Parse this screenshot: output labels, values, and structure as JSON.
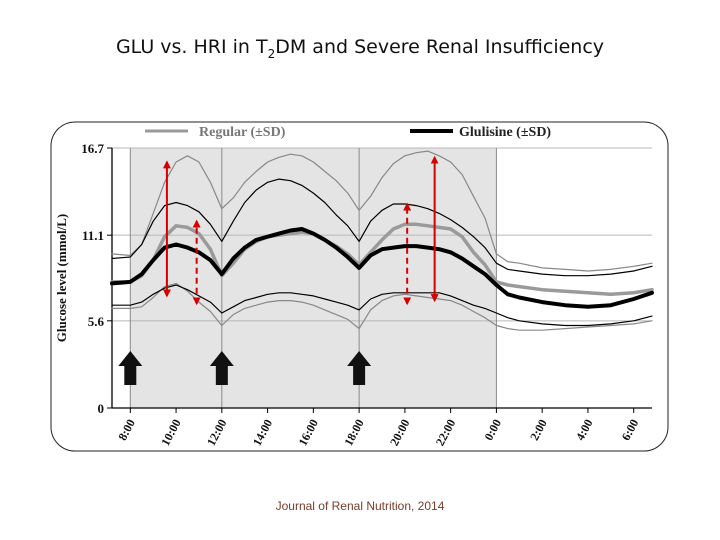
{
  "slide": {
    "title_prefix": "GLU vs. HRI in T",
    "title_sub": "2",
    "title_suffix": "DM and Severe Renal Insufficiency",
    "citation": "Journal of Renal Nutrition, 2014"
  },
  "chart_data": {
    "type": "line",
    "xlabel": "",
    "ylabel": "Glucose level (mmol/L)",
    "x_ticks": [
      "8:00",
      "10:00",
      "12:00",
      "14:00",
      "16:00",
      "18:00",
      "20:00",
      "22:00",
      "0:00",
      "2:00",
      "4:00",
      "6:00"
    ],
    "y_ticks": [
      0,
      5.6,
      11.1,
      16.7
    ],
    "ylim": [
      0,
      16.7
    ],
    "xlim": [
      7.2,
      30.8
    ],
    "grid": true,
    "legend_placement": "top",
    "shaded_period": [
      8,
      24
    ],
    "meal_arrows": [
      8,
      12,
      18
    ],
    "series": [
      {
        "name": "Regular (±SD)",
        "role": "mean",
        "color": "#9a9a9a",
        "x": [
          7.2,
          8,
          8.5,
          9,
          9.5,
          10,
          10.5,
          11,
          11.5,
          12,
          12.5,
          13,
          13.5,
          14,
          14.5,
          15,
          15.5,
          16,
          16.5,
          17,
          17.5,
          18,
          18.5,
          19,
          19.5,
          20,
          20.5,
          21,
          21.5,
          22,
          22.5,
          23,
          23.5,
          24,
          24.5,
          25,
          26,
          27,
          28,
          29,
          30,
          30.8
        ],
        "y": [
          8.1,
          8.1,
          8.5,
          9.5,
          11.0,
          11.7,
          11.6,
          11.2,
          10.2,
          8.5,
          9.3,
          10.2,
          10.7,
          11.0,
          11.1,
          11.2,
          11.3,
          11.2,
          10.8,
          10.4,
          9.9,
          9.2,
          10.0,
          10.8,
          11.5,
          11.8,
          11.8,
          11.7,
          11.6,
          11.5,
          11.0,
          10.0,
          9.2,
          8.1,
          7.9,
          7.8,
          7.6,
          7.5,
          7.4,
          7.3,
          7.4,
          7.6
        ]
      },
      {
        "name": "Regular upper SD",
        "role": "sd",
        "color": "#888888",
        "x": [
          7.2,
          8,
          8.5,
          9,
          9.5,
          10,
          10.5,
          11,
          11.5,
          12,
          12.5,
          13,
          13.5,
          14,
          14.5,
          15,
          15.5,
          16,
          16.5,
          17,
          17.5,
          18,
          18.5,
          19,
          19.5,
          20,
          20.5,
          21,
          21.5,
          22,
          22.5,
          23,
          23.5,
          24,
          24.5,
          25,
          26,
          27,
          28,
          29,
          30,
          30.8
        ],
        "y": [
          9.9,
          9.8,
          10.5,
          12.5,
          14.5,
          15.8,
          16.2,
          15.8,
          14.5,
          12.8,
          13.5,
          14.5,
          15.2,
          15.8,
          16.1,
          16.3,
          16.2,
          15.8,
          15.2,
          14.6,
          13.8,
          12.7,
          13.6,
          14.8,
          15.7,
          16.2,
          16.4,
          16.5,
          16.2,
          15.8,
          15.0,
          13.6,
          12.2,
          9.9,
          9.4,
          9.3,
          9.0,
          8.9,
          8.8,
          8.9,
          9.1,
          9.3
        ]
      },
      {
        "name": "Regular lower SD",
        "role": "sd",
        "color": "#888888",
        "x": [
          7.2,
          8,
          8.5,
          9,
          9.5,
          10,
          10.5,
          11,
          11.5,
          12,
          12.5,
          13,
          13.5,
          14,
          14.5,
          15,
          15.5,
          16,
          16.5,
          17,
          17.5,
          18,
          18.5,
          19,
          19.5,
          20,
          20.5,
          21,
          21.5,
          22,
          22.5,
          23,
          23.5,
          24,
          24.5,
          25,
          26,
          27,
          28,
          29,
          30,
          30.8
        ],
        "y": [
          6.4,
          6.4,
          6.5,
          7.1,
          7.8,
          8.0,
          7.5,
          6.8,
          6.2,
          5.3,
          6.0,
          6.4,
          6.6,
          6.8,
          6.9,
          6.9,
          6.8,
          6.6,
          6.3,
          6.0,
          5.7,
          5.1,
          6.3,
          6.9,
          7.2,
          7.3,
          7.2,
          7.1,
          7.0,
          6.9,
          6.6,
          6.2,
          5.8,
          5.3,
          5.1,
          5.0,
          5.0,
          5.1,
          5.2,
          5.3,
          5.4,
          5.6
        ]
      },
      {
        "name": "Glulisine (±SD)",
        "role": "mean",
        "color": "#000000",
        "x": [
          7.2,
          8,
          8.5,
          9,
          9.5,
          10,
          10.5,
          11,
          11.5,
          12,
          12.5,
          13,
          13.5,
          14,
          14.5,
          15,
          15.5,
          16,
          16.5,
          17,
          17.5,
          18,
          18.5,
          19,
          19.5,
          20,
          20.5,
          21,
          21.5,
          22,
          22.5,
          23,
          23.5,
          24,
          24.5,
          25,
          26,
          27,
          28,
          29,
          30,
          30.8
        ],
        "y": [
          8.0,
          8.1,
          8.6,
          9.5,
          10.3,
          10.5,
          10.3,
          10.0,
          9.5,
          8.6,
          9.6,
          10.3,
          10.8,
          11.0,
          11.2,
          11.4,
          11.5,
          11.2,
          10.8,
          10.3,
          9.7,
          9.0,
          9.8,
          10.2,
          10.3,
          10.4,
          10.4,
          10.3,
          10.2,
          10.0,
          9.6,
          9.1,
          8.6,
          7.9,
          7.3,
          7.1,
          6.8,
          6.6,
          6.5,
          6.6,
          7.0,
          7.4
        ]
      },
      {
        "name": "Glulisine upper SD",
        "role": "sd",
        "color": "#000000",
        "x": [
          7.2,
          8,
          8.5,
          9,
          9.5,
          10,
          10.5,
          11,
          11.5,
          12,
          12.5,
          13,
          13.5,
          14,
          14.5,
          15,
          15.5,
          16,
          16.5,
          17,
          17.5,
          18,
          18.5,
          19,
          19.5,
          20,
          20.5,
          21,
          21.5,
          22,
          22.5,
          23,
          23.5,
          24,
          24.5,
          25,
          26,
          27,
          28,
          29,
          30,
          30.8
        ],
        "y": [
          9.6,
          9.7,
          10.5,
          12.0,
          13.0,
          13.2,
          13.0,
          12.6,
          11.8,
          10.7,
          12.0,
          13.2,
          14.0,
          14.5,
          14.7,
          14.6,
          14.3,
          13.8,
          13.2,
          12.4,
          11.7,
          10.7,
          12.0,
          12.7,
          13.1,
          13.1,
          13.0,
          12.8,
          12.5,
          12.1,
          11.6,
          11.0,
          10.3,
          9.3,
          8.9,
          8.8,
          8.6,
          8.5,
          8.5,
          8.6,
          8.8,
          9.1
        ]
      },
      {
        "name": "Glulisine lower SD",
        "role": "sd",
        "color": "#000000",
        "x": [
          7.2,
          8,
          8.5,
          9,
          9.5,
          10,
          10.5,
          11,
          11.5,
          12,
          12.5,
          13,
          13.5,
          14,
          14.5,
          15,
          15.5,
          16,
          16.5,
          17,
          17.5,
          18,
          18.5,
          19,
          19.5,
          20,
          20.5,
          21,
          21.5,
          22,
          22.5,
          23,
          23.5,
          24,
          24.5,
          25,
          26,
          27,
          28,
          29,
          30,
          30.8
        ],
        "y": [
          6.6,
          6.6,
          6.8,
          7.3,
          7.7,
          7.9,
          7.6,
          7.2,
          6.8,
          6.1,
          6.5,
          6.9,
          7.1,
          7.3,
          7.4,
          7.4,
          7.3,
          7.2,
          7.0,
          6.8,
          6.6,
          6.3,
          7.0,
          7.3,
          7.4,
          7.4,
          7.4,
          7.4,
          7.4,
          7.2,
          6.9,
          6.6,
          6.4,
          6.1,
          5.8,
          5.6,
          5.4,
          5.3,
          5.3,
          5.4,
          5.6,
          5.9
        ]
      }
    ],
    "range_arrows": [
      {
        "x": 9.6,
        "y1": 7.2,
        "y2": 15.8,
        "style": "solid"
      },
      {
        "x": 10.9,
        "y1": 6.7,
        "y2": 12.0,
        "style": "dashed"
      },
      {
        "x": 20.1,
        "y1": 6.7,
        "y2": 13.1,
        "style": "dashed"
      },
      {
        "x": 21.3,
        "y1": 6.9,
        "y2": 16.1,
        "style": "solid"
      }
    ]
  }
}
